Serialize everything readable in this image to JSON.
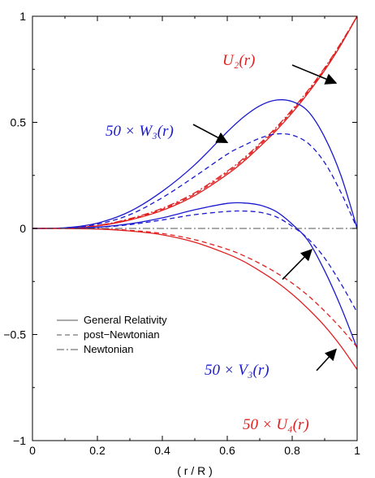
{
  "chart_data": {
    "type": "line",
    "xlabel": "( r / R )",
    "xlim": [
      0,
      1
    ],
    "ylim": [
      -1,
      1
    ],
    "xticks": [
      0,
      0.2,
      0.4,
      0.6,
      0.8,
      1
    ],
    "xtick_labels": [
      "0",
      "0.2",
      "0.4",
      "0.6",
      "0.8",
      "1"
    ],
    "yticks": [
      -1,
      -0.5,
      0,
      0.5,
      1
    ],
    "ytick_labels": [
      "−1",
      "−0.5",
      "0",
      "0.5",
      "1"
    ],
    "x": [
      0,
      0.1,
      0.2,
      0.3,
      0.4,
      0.5,
      0.6,
      0.65,
      0.7,
      0.75,
      0.8,
      0.85,
      0.9,
      0.95,
      1.0
    ],
    "series": [
      {
        "group": "U2",
        "style": "solid",
        "color": "#e02020",
        "values": [
          0,
          0.002,
          0.012,
          0.04,
          0.085,
          0.155,
          0.255,
          0.315,
          0.385,
          0.46,
          0.545,
          0.64,
          0.745,
          0.865,
          1.0
        ]
      },
      {
        "group": "U2",
        "style": "dashed",
        "color": "#e02020",
        "values": [
          0,
          0.002,
          0.013,
          0.043,
          0.09,
          0.162,
          0.263,
          0.323,
          0.393,
          0.468,
          0.553,
          0.647,
          0.752,
          0.87,
          1.0
        ]
      },
      {
        "group": "U2",
        "style": "dashdot",
        "color": "#e02020",
        "values": [
          0,
          0.002,
          0.014,
          0.046,
          0.095,
          0.168,
          0.27,
          0.33,
          0.4,
          0.475,
          0.56,
          0.653,
          0.757,
          0.874,
          1.0
        ]
      },
      {
        "group": "W3",
        "style": "solid",
        "color": "#1a1ad0",
        "values": [
          0,
          0.003,
          0.025,
          0.08,
          0.175,
          0.3,
          0.455,
          0.525,
          0.578,
          0.605,
          0.598,
          0.55,
          0.43,
          0.25,
          0.0
        ]
      },
      {
        "group": "W3",
        "style": "dashed",
        "color": "#1a1ad0",
        "values": [
          0,
          0.003,
          0.02,
          0.065,
          0.145,
          0.245,
          0.35,
          0.39,
          0.425,
          0.445,
          0.44,
          0.4,
          0.31,
          0.17,
          0.0
        ]
      },
      {
        "group": "V3",
        "style": "solid",
        "color": "#1a1ad0",
        "values": [
          0,
          0.001,
          0.006,
          0.022,
          0.05,
          0.088,
          0.118,
          0.12,
          0.11,
          0.08,
          0.02,
          -0.06,
          -0.2,
          -0.37,
          -0.565
        ]
      },
      {
        "group": "V3",
        "style": "dashed",
        "color": "#1a1ad0",
        "values": [
          0,
          0.001,
          0.005,
          0.018,
          0.04,
          0.065,
          0.08,
          0.082,
          0.076,
          0.055,
          0.01,
          -0.05,
          -0.14,
          -0.26,
          -0.395
        ]
      },
      {
        "group": "U4",
        "style": "solid",
        "color": "#e02020",
        "values": [
          0,
          -0.0005,
          -0.003,
          -0.012,
          -0.03,
          -0.065,
          -0.12,
          -0.155,
          -0.2,
          -0.25,
          -0.31,
          -0.38,
          -0.46,
          -0.555,
          -0.665
        ]
      },
      {
        "group": "U4",
        "style": "dashed",
        "color": "#e02020",
        "values": [
          0,
          -0.0005,
          -0.002,
          -0.009,
          -0.024,
          -0.053,
          -0.098,
          -0.128,
          -0.165,
          -0.208,
          -0.258,
          -0.318,
          -0.39,
          -0.47,
          -0.56
        ]
      },
      {
        "group": "zero",
        "style": "dashdot",
        "color": "#555555",
        "values": [
          0,
          0,
          0,
          0,
          0,
          0,
          0,
          0,
          0,
          0,
          0,
          0,
          0,
          0,
          0
        ]
      }
    ],
    "legend": {
      "placement": "lower-left",
      "entries": [
        {
          "label": "General Relativity",
          "style": "solid"
        },
        {
          "label": "post−Newtonian",
          "style": "dashed"
        },
        {
          "label": "Newtonian",
          "style": "dashdot"
        }
      ]
    },
    "annotations": [
      {
        "id": "u2",
        "label": "U₂(r)",
        "color": "#e02020",
        "arrow_from": [
          0.8,
          0.77
        ],
        "arrow_to": [
          0.935,
          0.685
        ]
      },
      {
        "id": "w3",
        "label": "50 × W₃(r)",
        "color": "#1a1ad0",
        "arrow_from": [
          0.495,
          0.49
        ],
        "arrow_to": [
          0.6,
          0.405
        ]
      },
      {
        "id": "v3",
        "label": "50 × V₃(r)",
        "color": "#1a1ad0",
        "arrow_from": [
          0.77,
          -0.24
        ],
        "arrow_to": [
          0.86,
          -0.1
        ]
      },
      {
        "id": "u4",
        "label": "50 × U₄(r)",
        "color": "#e02020",
        "arrow_from": [
          0.875,
          -0.67
        ],
        "arrow_to": [
          0.935,
          -0.57
        ]
      }
    ]
  }
}
